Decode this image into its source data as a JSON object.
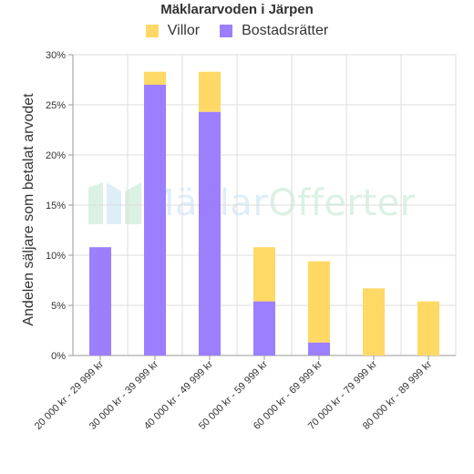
{
  "watermark": {
    "part1": "Mäklar",
    "part2": "Offerter",
    "color1": "#4fa3d8",
    "color2": "#3cb371"
  },
  "chart_data": {
    "type": "bar",
    "stacked": true,
    "title": "Mäklararvoden i Järpen",
    "ylabel": "Andelen säljare som betalat arvodet",
    "xlabel": "",
    "ylim": [
      0,
      30
    ],
    "yticks": [
      "0%",
      "5%",
      "10%",
      "15%",
      "20%",
      "25%",
      "30%"
    ],
    "grid": true,
    "legend_position": "top",
    "categories": [
      "20 000 kr - 29 999 kr",
      "30 000 kr - 39 999 kr",
      "40 000 kr - 49 999 kr",
      "50 000 kr - 59 999 kr",
      "60 000 kr - 69 999 kr",
      "70 000 kr - 79 999 kr",
      "80 000 kr - 89 999 kr"
    ],
    "series": [
      {
        "name": "Bostadsrätter",
        "color": "#9b7fff",
        "values": [
          10.8,
          27.0,
          24.3,
          5.4,
          1.3,
          0,
          0
        ]
      },
      {
        "name": "Villor",
        "color": "#ffd966",
        "values": [
          0,
          1.3,
          4.0,
          5.4,
          8.1,
          6.7,
          5.4
        ]
      }
    ],
    "legend_order": [
      "Villor",
      "Bostadsrätter"
    ]
  }
}
